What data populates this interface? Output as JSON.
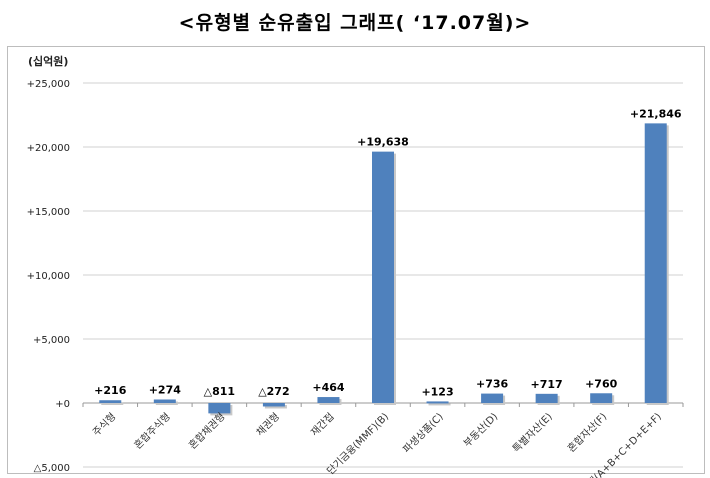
{
  "title": "<유형별 순유출입 그래프( ‘17.07월)>",
  "chart_data": {
    "type": "bar",
    "title": "<유형별 순유출입 그래프( ‘17.07월)>",
    "unit_label": "(십억원)",
    "categories": [
      "주식형",
      "혼합주식형",
      "혼합채권형",
      "채권형",
      "재간접",
      "단기금융(MMF)(B)",
      "파생상품(C)",
      "부동산(D)",
      "특별자산(E)",
      "혼합자산(F)",
      "합계(A+B+C+D+E+F)"
    ],
    "values": [
      216,
      274,
      -811,
      -272,
      464,
      19638,
      123,
      736,
      717,
      760,
      21846
    ],
    "data_labels": [
      "+216",
      "+274",
      "△811",
      "△272",
      "+464",
      "+19,638",
      "+123",
      "+736",
      "+717",
      "+760",
      "+21,846"
    ],
    "ylim": [
      -5000,
      25000
    ],
    "yticks": [
      -5000,
      0,
      5000,
      10000,
      15000,
      20000,
      25000
    ],
    "ytick_labels": [
      "△5,000",
      "+0",
      "+5,000",
      "+10,000",
      "+15,000",
      "+20,000",
      "+25,000"
    ],
    "grid": true,
    "bar_color": "#4f81bd"
  }
}
